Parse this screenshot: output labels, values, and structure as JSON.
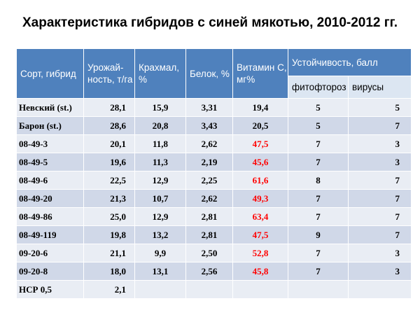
{
  "title": "Характеристика гибридов с синей мякотью, 2010-2012 гг.",
  "columns": {
    "variety": "Сорт, гибрид",
    "yield": "Урожай-ность, т/га",
    "starch": "Крахмал, %",
    "protein": "Белок, %",
    "vitamin": "Витамин С, мг%",
    "resistance": "Устойчивость, балл",
    "phyto": "фитофтороз",
    "viruses": "вирусы"
  },
  "highlight_color": "#ff0000",
  "rows": [
    {
      "name": "Невский (st.)",
      "yield": "28,1",
      "starch": "15,9",
      "protein": "3,31",
      "vitamin": "19,4",
      "vitamin_high": false,
      "phyto": "5",
      "viruses": "5"
    },
    {
      "name": "Барон (st.)",
      "yield": "28,6",
      "starch": "20,8",
      "protein": "3,43",
      "vitamin": "20,5",
      "vitamin_high": false,
      "phyto": "5",
      "viruses": "7"
    },
    {
      "name": "08-49-3",
      "yield": "20,1",
      "starch": "11,8",
      "protein": "2,62",
      "vitamin": "47,5",
      "vitamin_high": true,
      "phyto": "7",
      "viruses": "3"
    },
    {
      "name": "08-49-5",
      "yield": "19,6",
      "starch": "11,3",
      "protein": "2,19",
      "vitamin": "45,6",
      "vitamin_high": true,
      "phyto": "7",
      "viruses": "3"
    },
    {
      "name": "08-49-6",
      "yield": "22,5",
      "starch": "12,9",
      "protein": "2,25",
      "vitamin": "61,6",
      "vitamin_high": true,
      "phyto": "8",
      "viruses": "7"
    },
    {
      "name": "08-49-20",
      "yield": "21,3",
      "starch": "10,7",
      "protein": "2,62",
      "vitamin": "49,3",
      "vitamin_high": true,
      "phyto": "7",
      "viruses": "7"
    },
    {
      "name": "08-49-86",
      "yield": "25,0",
      "starch": "12,9",
      "protein": "2,81",
      "vitamin": "63,4",
      "vitamin_high": true,
      "phyto": "7",
      "viruses": "7"
    },
    {
      "name": "08-49-119",
      "yield": "19,8",
      "starch": "13,2",
      "protein": "2,81",
      "vitamin": "47,5",
      "vitamin_high": true,
      "phyto": "9",
      "viruses": "7"
    },
    {
      "name": "09-20-6",
      "yield": "21,1",
      "starch": "9,9",
      "protein": "2,50",
      "vitamin": "52,8",
      "vitamin_high": true,
      "phyto": "7",
      "viruses": "3"
    },
    {
      "name": "09-20-8",
      "yield": "18,0",
      "starch": "13,1",
      "protein": "2,56",
      "vitamin": "45,8",
      "vitamin_high": true,
      "phyto": "7",
      "viruses": "3"
    },
    {
      "name": "НСР 0,5",
      "yield": "2,1",
      "starch": "",
      "protein": "",
      "vitamin": "",
      "vitamin_high": false,
      "phyto": "",
      "viruses": ""
    }
  ]
}
